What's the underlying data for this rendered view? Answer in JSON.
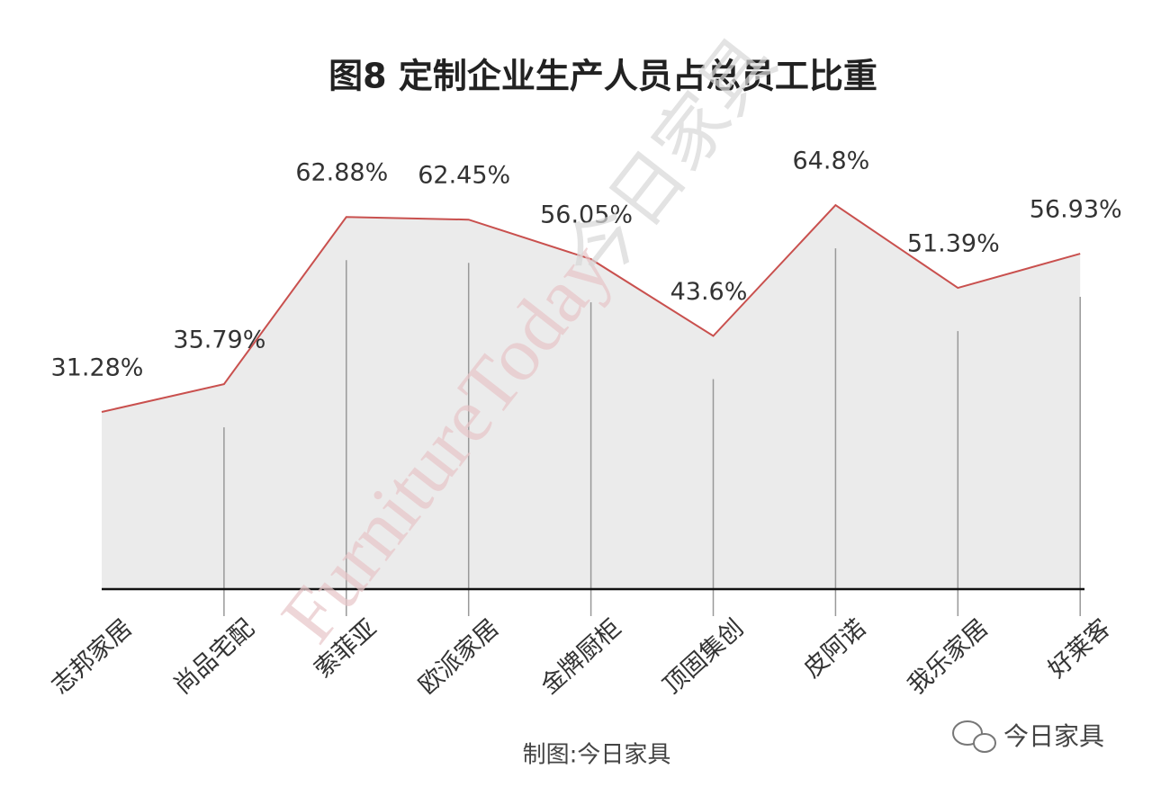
{
  "chart_data": {
    "type": "area",
    "title": "图8  定制企业生产人员占总员工比重",
    "categories": [
      "志邦家居",
      "尚品宅配",
      "索菲亚",
      "欧派家居",
      "金牌厨柜",
      "顶固集创",
      "皮阿诺",
      "我乐家居",
      "好莱客"
    ],
    "values": [
      31.28,
      35.79,
      62.88,
      62.45,
      56.05,
      43.6,
      64.8,
      51.39,
      56.93
    ],
    "value_labels": [
      "31.28%",
      "35.79%",
      "62.88%",
      "62.45%",
      "56.05%",
      "43.6%",
      "64.8%",
      "51.39%",
      "56.93%"
    ],
    "color": "#c9504e",
    "fill": "#ebebeb",
    "watermark_en": "FurnitureToday",
    "watermark_cn": "今日家具",
    "source": "制图:今日家具",
    "account": "今日家具"
  }
}
